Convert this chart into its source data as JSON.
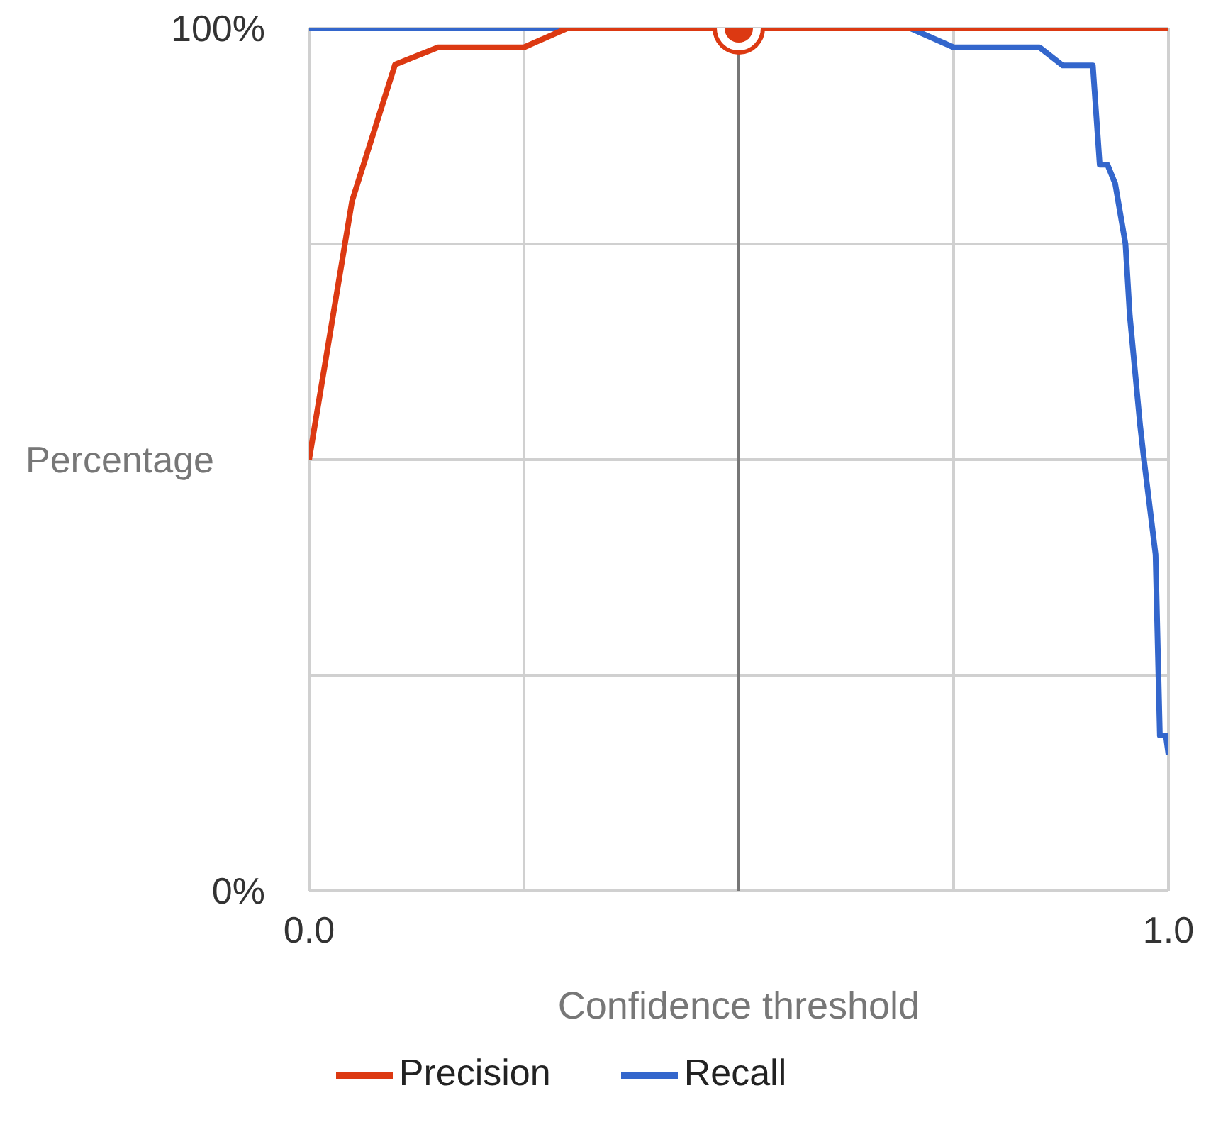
{
  "chart_data": {
    "type": "line",
    "xlabel": "Confidence threshold",
    "ylabel": "Percentage",
    "xlim": [
      0,
      1
    ],
    "ylim": [
      0,
      100
    ],
    "xticks": [
      {
        "value": 0,
        "label": "0.0"
      },
      {
        "value": 0.25,
        "label": null
      },
      {
        "value": 0.5,
        "label": null
      },
      {
        "value": 0.75,
        "label": null
      },
      {
        "value": 1,
        "label": "1.0"
      }
    ],
    "yticks": [
      {
        "value": 0,
        "label": "0%"
      },
      {
        "value": 25,
        "label": null
      },
      {
        "value": 50,
        "label": null
      },
      {
        "value": 75,
        "label": null
      },
      {
        "value": 100,
        "label": "100%"
      }
    ],
    "grid": true,
    "legend": "bottom",
    "marker": "none",
    "line_style": "solid",
    "ref_lines": [
      {
        "axis": "x",
        "value": 0.5,
        "color": "#777777"
      }
    ],
    "series": [
      {
        "name": "Recall",
        "color": "#3366cc",
        "x": [
          0,
          0.7,
          0.75,
          0.85,
          0.877,
          0.912,
          0.92,
          0.929,
          0.938,
          0.95,
          0.955,
          0.967,
          0.972,
          0.985,
          0.99,
          0.997,
          1
        ],
        "values": [
          100,
          100,
          97.8,
          97.8,
          95.7,
          95.7,
          84.2,
          84.2,
          82,
          75,
          66.7,
          54,
          49.6,
          39,
          18,
          18,
          15.8
        ]
      },
      {
        "name": "Precision",
        "color": "#dc3912",
        "x": [
          0,
          0.05,
          0.1,
          0.15,
          0.25,
          0.3,
          1
        ],
        "values": [
          50,
          80,
          95.8,
          97.8,
          97.8,
          100,
          100
        ]
      },
      {
        "type": "scatter",
        "color": "#dc3912",
        "marker": "circle",
        "x": [
          0.5
        ],
        "values": [
          100
        ]
      }
    ]
  }
}
